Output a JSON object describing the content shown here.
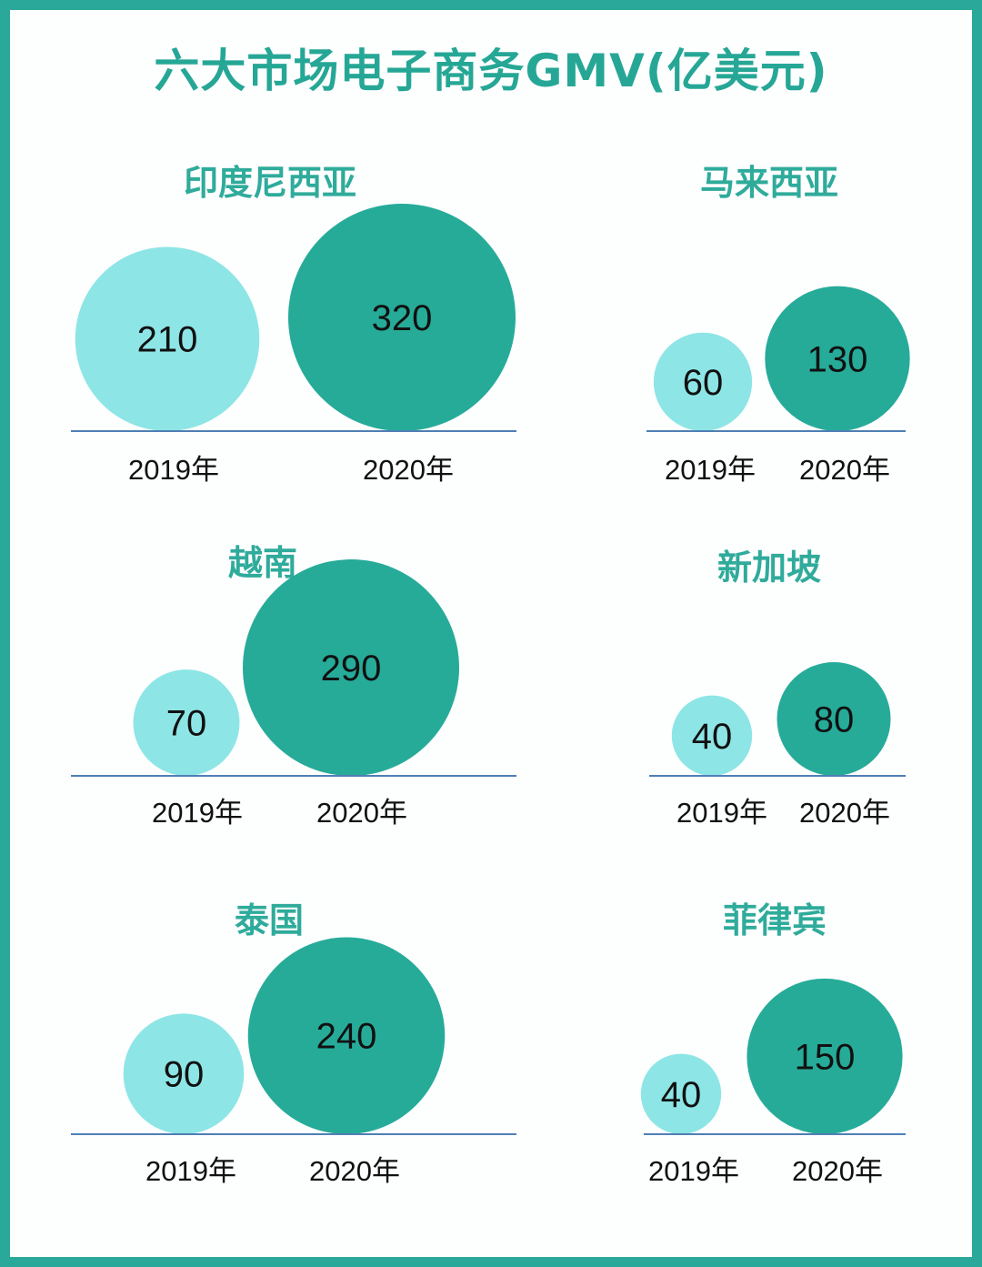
{
  "title": "六大市场电子商务GMV(亿美元)",
  "colors": {
    "frame": "#2aa99a",
    "title": "#26a796",
    "bubble_2019": "#8de5e6",
    "bubble_2020": "#26ab99",
    "baseline": "#4f7fb5"
  },
  "chart_data": {
    "type": "bubble",
    "title": "六大市场电子商务GMV(亿美元)",
    "years": [
      "2019年",
      "2020年"
    ],
    "markets": [
      {
        "name": "印度尼西亚",
        "values": [
          210,
          320
        ]
      },
      {
        "name": "马来西亚",
        "values": [
          60,
          130
        ]
      },
      {
        "name": "越南",
        "values": [
          70,
          290
        ]
      },
      {
        "name": "新加坡",
        "values": [
          40,
          80
        ]
      },
      {
        "name": "泰国",
        "values": [
          90,
          240
        ]
      },
      {
        "name": "菲律宾",
        "values": [
          40,
          150
        ]
      }
    ]
  }
}
